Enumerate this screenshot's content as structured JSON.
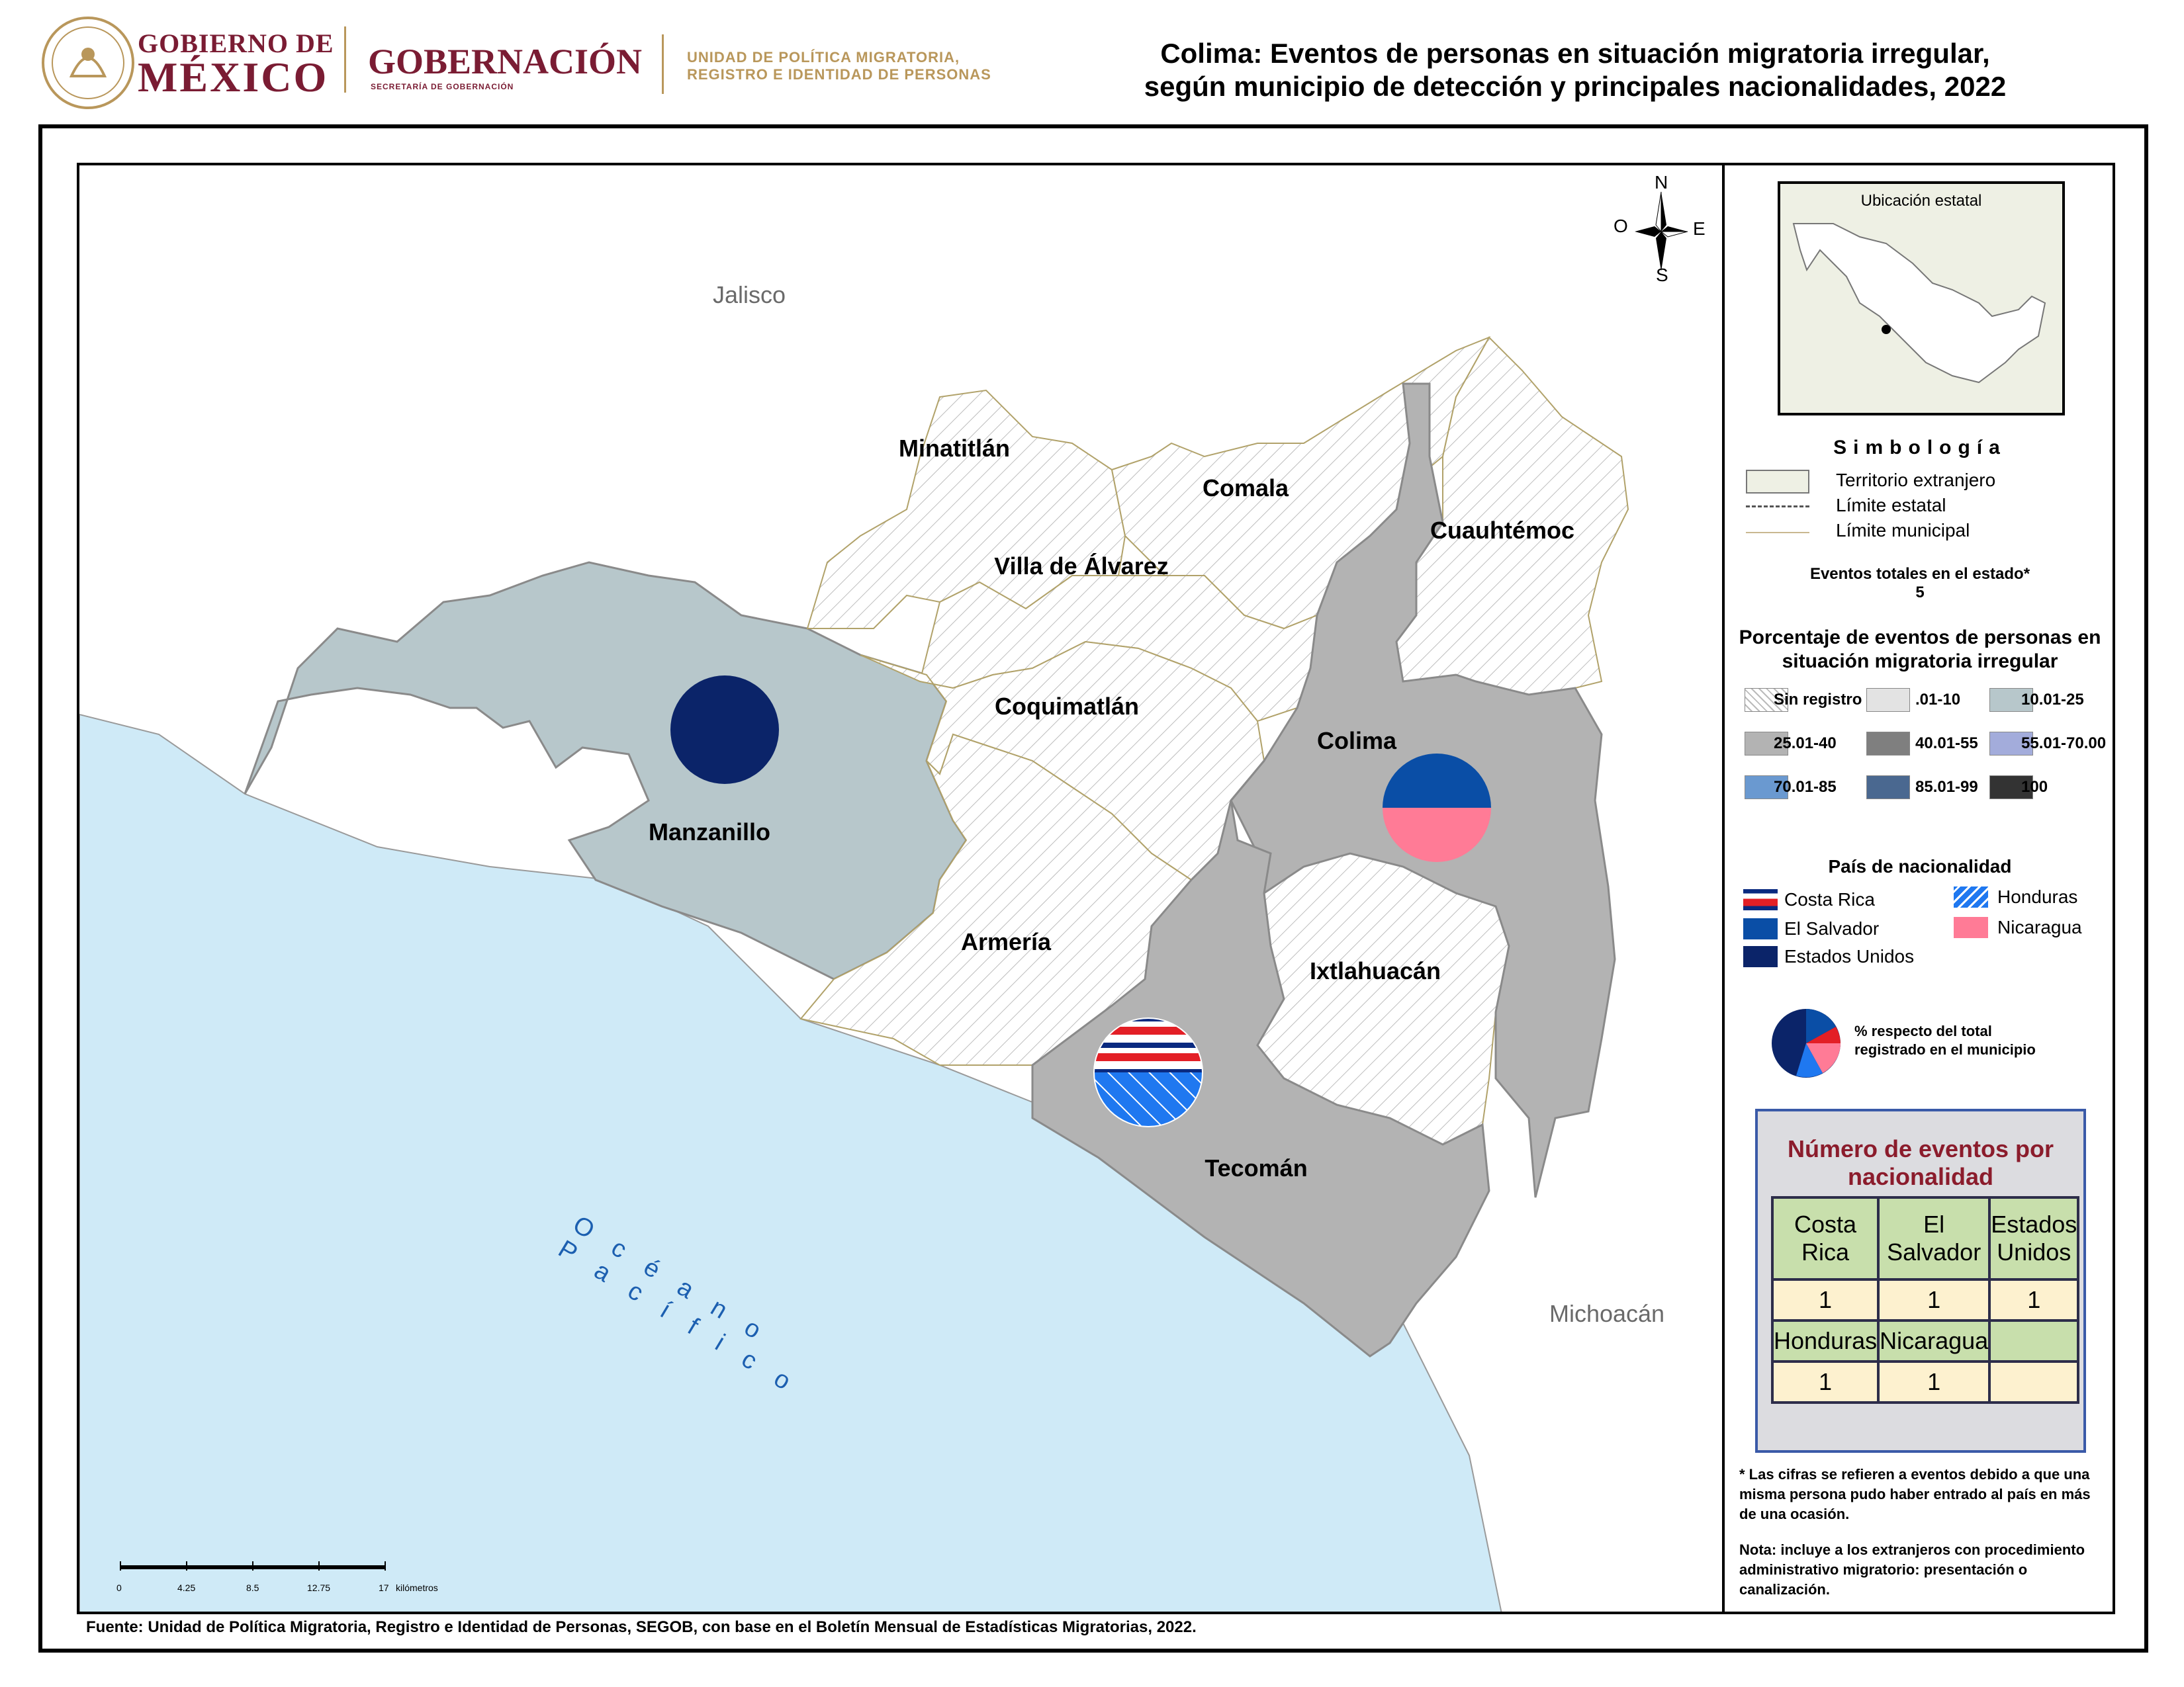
{
  "header": {
    "gov_line1": "GOBIERNO DE",
    "gov_line2": "MÉXICO",
    "ministry": "GOBERNACIÓN",
    "ministry_sub": "SECRETARÍA DE GOBERNACIÓN",
    "unit_line1": "UNIDAD DE POLÍTICA MIGRATORIA,",
    "unit_line2": "REGISTRO E IDENTIDAD DE PERSONAS",
    "title_line1": "Colima: Eventos de personas en situación migratoria irregular,",
    "title_line2": "según municipio de detección y principales nacionalidades, 2022"
  },
  "map": {
    "neighbors": {
      "north": "Jalisco",
      "east": "Michoacán"
    },
    "ocean_label": "Océano Pacífico",
    "compass": {
      "n": "N",
      "s": "S",
      "e": "E",
      "o": "O"
    },
    "scale_ticks": [
      "0",
      "4.25",
      "8.5",
      "12.75",
      "17"
    ],
    "scale_unit": "kilómetros",
    "municipalities": [
      {
        "name": "Minatitlán",
        "class": "Sin registro"
      },
      {
        "name": "Comala",
        "class": "Sin registro"
      },
      {
        "name": "Cuauhtémoc",
        "class": "Sin registro"
      },
      {
        "name": "Villa de Álvarez",
        "class": "Sin registro"
      },
      {
        "name": "Coquimatlán",
        "class": "Sin registro"
      },
      {
        "name": "Colima",
        "class": "25.01-40"
      },
      {
        "name": "Manzanillo",
        "class": "10.01-25"
      },
      {
        "name": "Armería",
        "class": "Sin registro"
      },
      {
        "name": "Ixtlahuacán",
        "class": "Sin registro"
      },
      {
        "name": "Tecomán",
        "class": "25.01-40"
      }
    ],
    "pies": [
      {
        "municipio": "Manzanillo",
        "shares": [
          {
            "nationality": "Estados Unidos",
            "pct": 100
          }
        ]
      },
      {
        "municipio": "Colima",
        "shares": [
          {
            "nationality": "El Salvador",
            "pct": 50
          },
          {
            "nationality": "Nicaragua",
            "pct": 50
          }
        ]
      },
      {
        "municipio": "Tecomán",
        "shares": [
          {
            "nationality": "Costa Rica",
            "pct": 50
          },
          {
            "nationality": "Honduras",
            "pct": 50
          }
        ]
      }
    ]
  },
  "legend": {
    "inset_title": "Ubicación estatal",
    "simbologia_title": "Simbología",
    "items": [
      "Territorio extranjero",
      "Límite estatal",
      "Límite municipal"
    ],
    "total_label": "Eventos totales en el estado*",
    "total_value": "5",
    "pct_title_line1": "Porcentaje de eventos de personas en",
    "pct_title_line2": "situación migratoria irregular",
    "classes": [
      {
        "label": "Sin registro",
        "color": "#ffffff"
      },
      {
        "label": ".01-10",
        "color": "#e3e3e3"
      },
      {
        "label": "10.01-25",
        "color": "#b7c7cb"
      },
      {
        "label": "25.01-40",
        "color": "#b3b3b3"
      },
      {
        "label": "40.01-55",
        "color": "#7f7f7f"
      },
      {
        "label": "55.01-70.00",
        "color": "#a3acdb"
      },
      {
        "label": "70.01-85",
        "color": "#6a99d0"
      },
      {
        "label": "85.01-99",
        "color": "#4a6890"
      },
      {
        "label": "100",
        "color": "#333333"
      }
    ],
    "nat_title": "País de nacionalidad",
    "nationalities": [
      {
        "label": "Costa Rica",
        "color": "#e31f26"
      },
      {
        "label": "Honduras",
        "color": "#1f78f0"
      },
      {
        "label": "El Salvador",
        "color": "#0a4ea6"
      },
      {
        "label": "Nicaragua",
        "color": "#ff7b96"
      },
      {
        "label": "Estados Unidos",
        "color": "#0b2469"
      }
    ],
    "pie_note_line1": "%  respecto del total",
    "pie_note_line2": "registrado en el municipio",
    "table_title": "Número de eventos por nacionalidad",
    "table": {
      "row1_headers": [
        "Costa Rica",
        "El Salvador",
        "Estados Unidos"
      ],
      "row1_values": [
        "1",
        "1",
        "1"
      ],
      "row2_headers": [
        "Honduras",
        "Nicaragua"
      ],
      "row2_values": [
        "1",
        "1"
      ]
    },
    "footnote": "* Las cifras se refieren a eventos debido a que una misma persona pudo haber entrado al país en más de una ocasión.",
    "note": "Nota: incluye a los extranjeros con procedimiento administrativo migratorio: presentación o canalización."
  },
  "footer": {
    "source": "Fuente: Unidad de Política Migratoria, Registro e Identidad de Personas, SEGOB, con base en el Boletín Mensual de Estadísticas Migratorias, 2022."
  }
}
